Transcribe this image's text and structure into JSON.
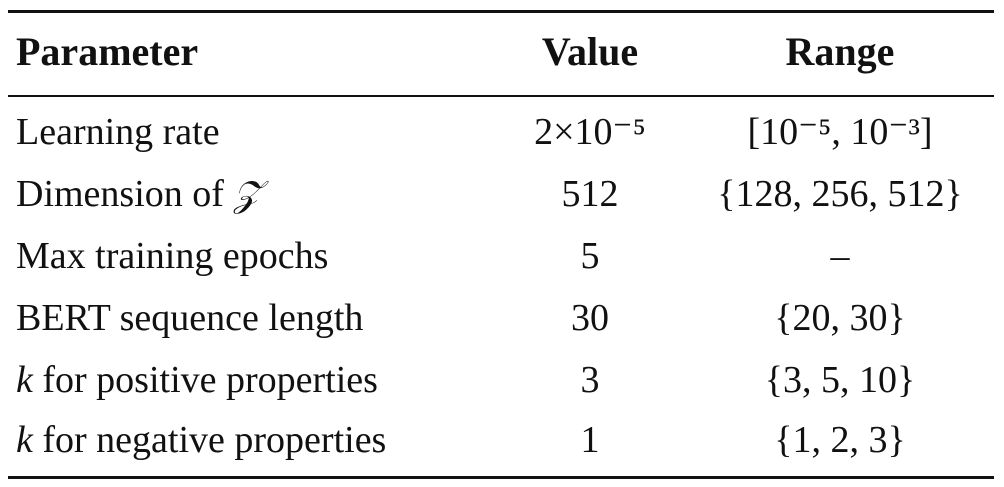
{
  "table": {
    "headers": {
      "parameter": "Parameter",
      "value": "Value",
      "range": "Range"
    },
    "rows": [
      {
        "parameter_prefix": "",
        "parameter": "Learning rate",
        "value": "2×10⁻⁵",
        "range": "[10⁻⁵, 10⁻³]"
      },
      {
        "parameter_prefix": "",
        "parameter": "Dimension of ",
        "parameter_symbol": "𝒵",
        "value": "512",
        "range": "{128, 256, 512}"
      },
      {
        "parameter_prefix": "",
        "parameter": "Max training epochs",
        "value": "5",
        "range": "–"
      },
      {
        "parameter_prefix": "",
        "parameter": "BERT sequence length",
        "value": "30",
        "range": "{20, 30}"
      },
      {
        "parameter_prefix": "k",
        "parameter": " for positive properties",
        "value": "3",
        "range": "{3, 5, 10}"
      },
      {
        "parameter_prefix": "k",
        "parameter": " for negative properties",
        "value": "1",
        "range": "{1, 2, 3}"
      }
    ]
  }
}
